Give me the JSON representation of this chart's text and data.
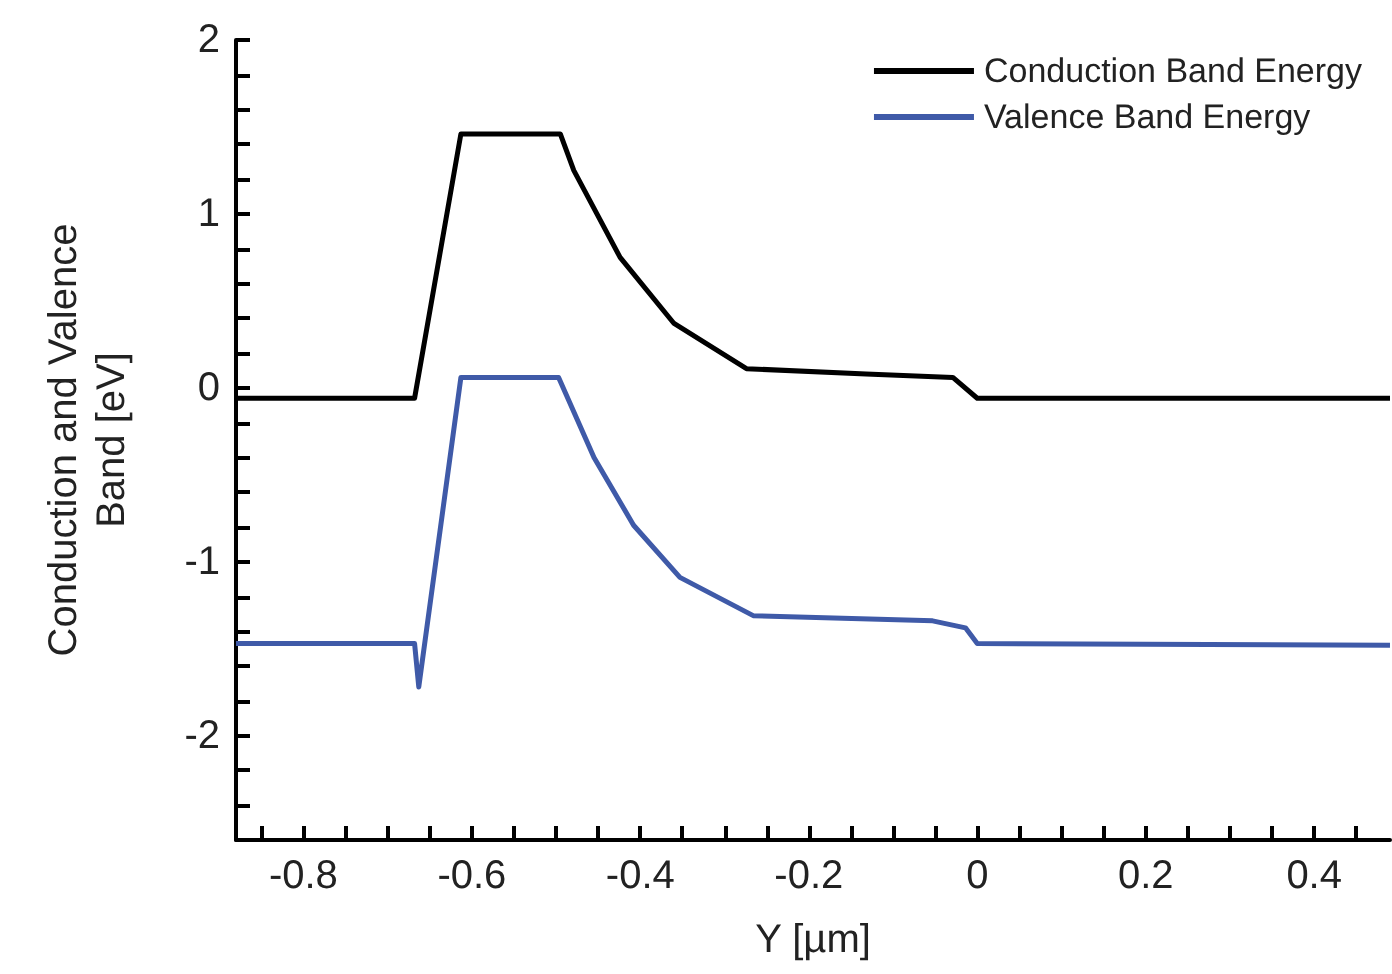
{
  "chart_data": {
    "type": "line",
    "xlabel": "Y [µm]",
    "ylabel": "Conduction and Valence\nBand [eV]",
    "xlim": [
      -0.88,
      0.49
    ],
    "ylim": [
      -2.6,
      2
    ],
    "xticks": [
      {
        "value": -0.85,
        "label": null
      },
      -0.8,
      {
        "value": -0.75,
        "label": null
      },
      {
        "value": -0.7,
        "label": null
      },
      {
        "value": -0.65,
        "label": null
      },
      -0.6,
      {
        "value": -0.55,
        "label": null
      },
      {
        "value": -0.5,
        "label": null
      },
      {
        "value": -0.45,
        "label": null
      },
      -0.4,
      {
        "value": -0.35,
        "label": null
      },
      {
        "value": -0.3,
        "label": null
      },
      {
        "value": -0.25,
        "label": null
      },
      -0.2,
      {
        "value": -0.15,
        "label": null
      },
      {
        "value": -0.1,
        "label": null
      },
      {
        "value": -0.05,
        "label": null
      },
      0,
      {
        "value": 0.05,
        "label": null
      },
      {
        "value": 0.1,
        "label": null
      },
      {
        "value": 0.15,
        "label": null
      },
      0.2,
      {
        "value": 0.25,
        "label": null
      },
      {
        "value": 0.3,
        "label": null
      },
      {
        "value": 0.35,
        "label": null
      },
      0.4,
      {
        "value": 0.45,
        "label": null
      }
    ],
    "yticks": [
      {
        "value": -2.4,
        "label": null
      },
      {
        "value": -2.2,
        "label": null
      },
      -2,
      {
        "value": -1.8,
        "label": null
      },
      {
        "value": -1.6,
        "label": null
      },
      {
        "value": -1.4,
        "label": null
      },
      {
        "value": -1.2,
        "label": null
      },
      -1,
      {
        "value": -0.8,
        "label": null
      },
      {
        "value": -0.6,
        "label": null
      },
      {
        "value": -0.4,
        "label": null
      },
      {
        "value": -0.2,
        "label": null
      },
      0,
      {
        "value": 0.2,
        "label": null
      },
      {
        "value": 0.4,
        "label": null
      },
      {
        "value": 0.6,
        "label": null
      },
      {
        "value": 0.8,
        "label": null
      },
      1,
      {
        "value": 1.2,
        "label": null
      },
      {
        "value": 1.4,
        "label": null
      },
      {
        "value": 1.6,
        "label": null
      },
      {
        "value": 1.8,
        "label": null
      },
      2
    ],
    "grid": false,
    "legend": "top right",
    "line_style": "solid",
    "series": [
      {
        "name": "Conduction Band Energy",
        "color": "#000000",
        "x": [
          -0.88,
          -0.668,
          -0.613,
          -0.495,
          -0.479,
          -0.424,
          -0.36,
          -0.274,
          -0.132,
          -0.029,
          0,
          0.49
        ],
        "values": [
          -0.06,
          -0.06,
          1.46,
          1.46,
          1.25,
          0.75,
          0.37,
          0.11,
          0.08,
          0.06,
          -0.06,
          -0.06
        ]
      },
      {
        "name": "Valence Band Energy",
        "color": "#3f5aa8",
        "x": [
          -0.88,
          -0.668,
          -0.663,
          -0.613,
          -0.497,
          -0.455,
          -0.408,
          -0.353,
          -0.266,
          -0.053,
          -0.014,
          0,
          0.49
        ],
        "values": [
          -1.47,
          -1.47,
          -1.72,
          0.06,
          0.06,
          -0.4,
          -0.79,
          -1.09,
          -1.31,
          -1.34,
          -1.38,
          -1.47,
          -1.48
        ]
      }
    ]
  }
}
